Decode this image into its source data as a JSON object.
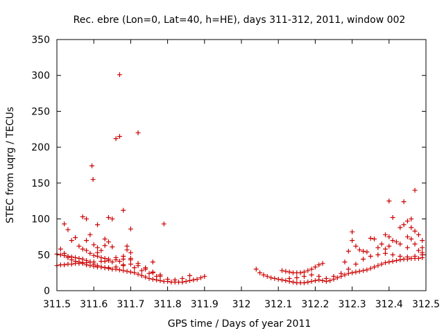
{
  "chart_data": {
    "type": "scatter",
    "title": "Rec. ebre (Lon=0, Lat=40, h=HE), days 311-312, 2011, window 002",
    "xlabel": "GPS time / Days of year 2011",
    "ylabel": "STEC from uqrg / TECUs",
    "xlim": [
      311.5,
      312.5
    ],
    "ylim": [
      0,
      350
    ],
    "xticks": [
      "311.5",
      "311.6",
      "311.7",
      "311.8",
      "311.9",
      "312",
      "312.1",
      "312.2",
      "312.3",
      "312.4",
      "312.5"
    ],
    "xtick_values": [
      311.5,
      311.6,
      311.7,
      311.8,
      311.9,
      312.0,
      312.1,
      312.2,
      312.3,
      312.4,
      312.5
    ],
    "yticks": [
      "0",
      "50",
      "100",
      "150",
      "200",
      "250",
      "300",
      "350"
    ],
    "ytick_values": [
      0,
      50,
      100,
      150,
      200,
      250,
      300,
      350
    ],
    "grid": false,
    "legend": "none",
    "marker": "plus",
    "color": "#cc0000",
    "points": [
      [
        311.5,
        35
      ],
      [
        311.51,
        36
      ],
      [
        311.52,
        36
      ],
      [
        311.53,
        37
      ],
      [
        311.54,
        37
      ],
      [
        311.55,
        38
      ],
      [
        311.56,
        38
      ],
      [
        311.57,
        39
      ],
      [
        311.58,
        39
      ],
      [
        311.59,
        40
      ],
      [
        311.6,
        40
      ],
      [
        311.62,
        41
      ],
      [
        311.64,
        42
      ],
      [
        311.66,
        43
      ],
      [
        311.68,
        44
      ],
      [
        311.7,
        43
      ],
      [
        311.5,
        51
      ],
      [
        311.51,
        50
      ],
      [
        311.52,
        49
      ],
      [
        311.53,
        48
      ],
      [
        311.54,
        47
      ],
      [
        311.55,
        46
      ],
      [
        311.56,
        45
      ],
      [
        311.57,
        44
      ],
      [
        311.58,
        42
      ],
      [
        311.59,
        40
      ],
      [
        311.6,
        37
      ],
      [
        311.61,
        35
      ],
      [
        311.62,
        33
      ],
      [
        311.63,
        32
      ],
      [
        311.64,
        31
      ],
      [
        311.65,
        30
      ],
      [
        311.66,
        30
      ],
      [
        311.67,
        29
      ],
      [
        311.68,
        28
      ],
      [
        311.69,
        27
      ],
      [
        311.7,
        26
      ],
      [
        311.71,
        25
      ],
      [
        311.72,
        23
      ],
      [
        311.73,
        21
      ],
      [
        311.74,
        19
      ],
      [
        311.75,
        17
      ],
      [
        311.76,
        16
      ],
      [
        311.77,
        15
      ],
      [
        311.78,
        14
      ],
      [
        311.79,
        13
      ],
      [
        311.8,
        13
      ],
      [
        311.81,
        12
      ],
      [
        311.82,
        12
      ],
      [
        311.83,
        12
      ],
      [
        311.84,
        12
      ],
      [
        311.85,
        13
      ],
      [
        311.86,
        14
      ],
      [
        311.87,
        15
      ],
      [
        311.88,
        16
      ],
      [
        311.89,
        18
      ],
      [
        311.9,
        20
      ],
      [
        311.51,
        58
      ],
      [
        311.52,
        52
      ],
      [
        311.53,
        46
      ],
      [
        311.54,
        43
      ],
      [
        311.55,
        41
      ],
      [
        311.56,
        40
      ],
      [
        311.57,
        38
      ],
      [
        311.58,
        36
      ],
      [
        311.59,
        35
      ],
      [
        311.6,
        34
      ],
      [
        311.61,
        33
      ],
      [
        311.62,
        33
      ],
      [
        311.63,
        32
      ],
      [
        311.64,
        32
      ],
      [
        311.66,
        33
      ],
      [
        311.68,
        35
      ],
      [
        311.7,
        37
      ],
      [
        311.72,
        35
      ],
      [
        311.74,
        30
      ],
      [
        311.76,
        25
      ],
      [
        311.78,
        20
      ],
      [
        311.8,
        16
      ],
      [
        311.82,
        15
      ],
      [
        311.84,
        17
      ],
      [
        311.86,
        21
      ],
      [
        311.52,
        93
      ],
      [
        311.53,
        85
      ],
      [
        311.54,
        70
      ],
      [
        311.55,
        74
      ],
      [
        311.56,
        62
      ],
      [
        311.57,
        58
      ],
      [
        311.58,
        56
      ],
      [
        311.59,
        52
      ],
      [
        311.6,
        49
      ],
      [
        311.61,
        48
      ],
      [
        311.62,
        46
      ],
      [
        311.63,
        45
      ],
      [
        311.64,
        44
      ],
      [
        311.66,
        46
      ],
      [
        311.68,
        48
      ],
      [
        311.7,
        45
      ],
      [
        311.72,
        38
      ],
      [
        311.74,
        32
      ],
      [
        311.76,
        26
      ],
      [
        311.78,
        22
      ],
      [
        311.57,
        103
      ],
      [
        311.58,
        100
      ],
      [
        311.58,
        70
      ],
      [
        311.59,
        78
      ],
      [
        311.6,
        64
      ],
      [
        311.61,
        60
      ],
      [
        311.61,
        53
      ],
      [
        311.62,
        56
      ],
      [
        311.63,
        72
      ],
      [
        311.63,
        63
      ],
      [
        311.64,
        102
      ],
      [
        311.64,
        68
      ],
      [
        311.65,
        100
      ],
      [
        311.65,
        61
      ],
      [
        311.66,
        212
      ],
      [
        311.67,
        215
      ],
      [
        311.67,
        301
      ],
      [
        311.68,
        112
      ],
      [
        311.69,
        62
      ],
      [
        311.69,
        57
      ],
      [
        311.7,
        86
      ],
      [
        311.7,
        53
      ],
      [
        311.72,
        220
      ],
      [
        311.76,
        40
      ],
      [
        311.79,
        93
      ],
      [
        311.595,
        174
      ],
      [
        311.598,
        155
      ],
      [
        311.61,
        92
      ],
      [
        311.63,
        41
      ],
      [
        311.65,
        40
      ],
      [
        311.67,
        41
      ],
      [
        311.68,
        36
      ],
      [
        311.71,
        32
      ],
      [
        311.73,
        28
      ],
      [
        311.75,
        24
      ],
      [
        311.77,
        20
      ],
      [
        312.04,
        30
      ],
      [
        312.05,
        25
      ],
      [
        312.06,
        22
      ],
      [
        312.07,
        20
      ],
      [
        312.08,
        18
      ],
      [
        312.09,
        17
      ],
      [
        312.1,
        16
      ],
      [
        312.11,
        15
      ],
      [
        312.12,
        14
      ],
      [
        312.13,
        13
      ],
      [
        312.14,
        12
      ],
      [
        312.15,
        11
      ],
      [
        312.16,
        11
      ],
      [
        312.17,
        11
      ],
      [
        312.18,
        12
      ],
      [
        312.19,
        13
      ],
      [
        312.2,
        14
      ],
      [
        312.21,
        15
      ],
      [
        312.22,
        14
      ],
      [
        312.23,
        13
      ],
      [
        312.24,
        14
      ],
      [
        312.25,
        16
      ],
      [
        312.26,
        18
      ],
      [
        312.27,
        20
      ],
      [
        312.28,
        22
      ],
      [
        312.29,
        24
      ],
      [
        312.3,
        25
      ],
      [
        312.31,
        26
      ],
      [
        312.32,
        27
      ],
      [
        312.33,
        28
      ],
      [
        312.34,
        29
      ],
      [
        312.35,
        31
      ],
      [
        312.36,
        33
      ],
      [
        312.37,
        35
      ],
      [
        312.38,
        37
      ],
      [
        312.39,
        39
      ],
      [
        312.4,
        40
      ],
      [
        312.41,
        41
      ],
      [
        312.42,
        42
      ],
      [
        312.43,
        43
      ],
      [
        312.44,
        44
      ],
      [
        312.45,
        44
      ],
      [
        312.46,
        45
      ],
      [
        312.47,
        45
      ],
      [
        312.48,
        45
      ],
      [
        312.49,
        46
      ],
      [
        312.11,
        28
      ],
      [
        312.12,
        27
      ],
      [
        312.13,
        26
      ],
      [
        312.14,
        25
      ],
      [
        312.15,
        25
      ],
      [
        312.16,
        25
      ],
      [
        312.17,
        26
      ],
      [
        312.18,
        28
      ],
      [
        312.19,
        30
      ],
      [
        312.2,
        33
      ],
      [
        312.21,
        36
      ],
      [
        312.22,
        38
      ],
      [
        312.13,
        17
      ],
      [
        312.15,
        18
      ],
      [
        312.17,
        20
      ],
      [
        312.19,
        22
      ],
      [
        312.21,
        20
      ],
      [
        312.23,
        17
      ],
      [
        312.25,
        20
      ],
      [
        312.27,
        24
      ],
      [
        312.29,
        30
      ],
      [
        312.31,
        37
      ],
      [
        312.33,
        44
      ],
      [
        312.35,
        48
      ],
      [
        312.37,
        50
      ],
      [
        312.39,
        52
      ],
      [
        312.41,
        50
      ],
      [
        312.43,
        48
      ],
      [
        312.45,
        47
      ],
      [
        312.47,
        48
      ],
      [
        312.49,
        50
      ],
      [
        312.28,
        40
      ],
      [
        312.29,
        55
      ],
      [
        312.3,
        70
      ],
      [
        312.3,
        82
      ],
      [
        312.31,
        62
      ],
      [
        312.32,
        57
      ],
      [
        312.33,
        55
      ],
      [
        312.34,
        54
      ],
      [
        312.35,
        73
      ],
      [
        312.36,
        72
      ],
      [
        312.37,
        60
      ],
      [
        312.38,
        65
      ],
      [
        312.39,
        78
      ],
      [
        312.39,
        58
      ],
      [
        312.4,
        125
      ],
      [
        312.4,
        75
      ],
      [
        312.4,
        62
      ],
      [
        312.41,
        102
      ],
      [
        312.41,
        70
      ],
      [
        312.42,
        68
      ],
      [
        312.43,
        88
      ],
      [
        312.43,
        65
      ],
      [
        312.44,
        124
      ],
      [
        312.44,
        92
      ],
      [
        312.45,
        97
      ],
      [
        312.45,
        75
      ],
      [
        312.45,
        60
      ],
      [
        312.46,
        100
      ],
      [
        312.46,
        88
      ],
      [
        312.46,
        72
      ],
      [
        312.47,
        140
      ],
      [
        312.47,
        83
      ],
      [
        312.47,
        65
      ],
      [
        312.48,
        78
      ],
      [
        312.48,
        56
      ],
      [
        312.49,
        70
      ],
      [
        312.49,
        60
      ],
      [
        312.49,
        53
      ]
    ]
  }
}
